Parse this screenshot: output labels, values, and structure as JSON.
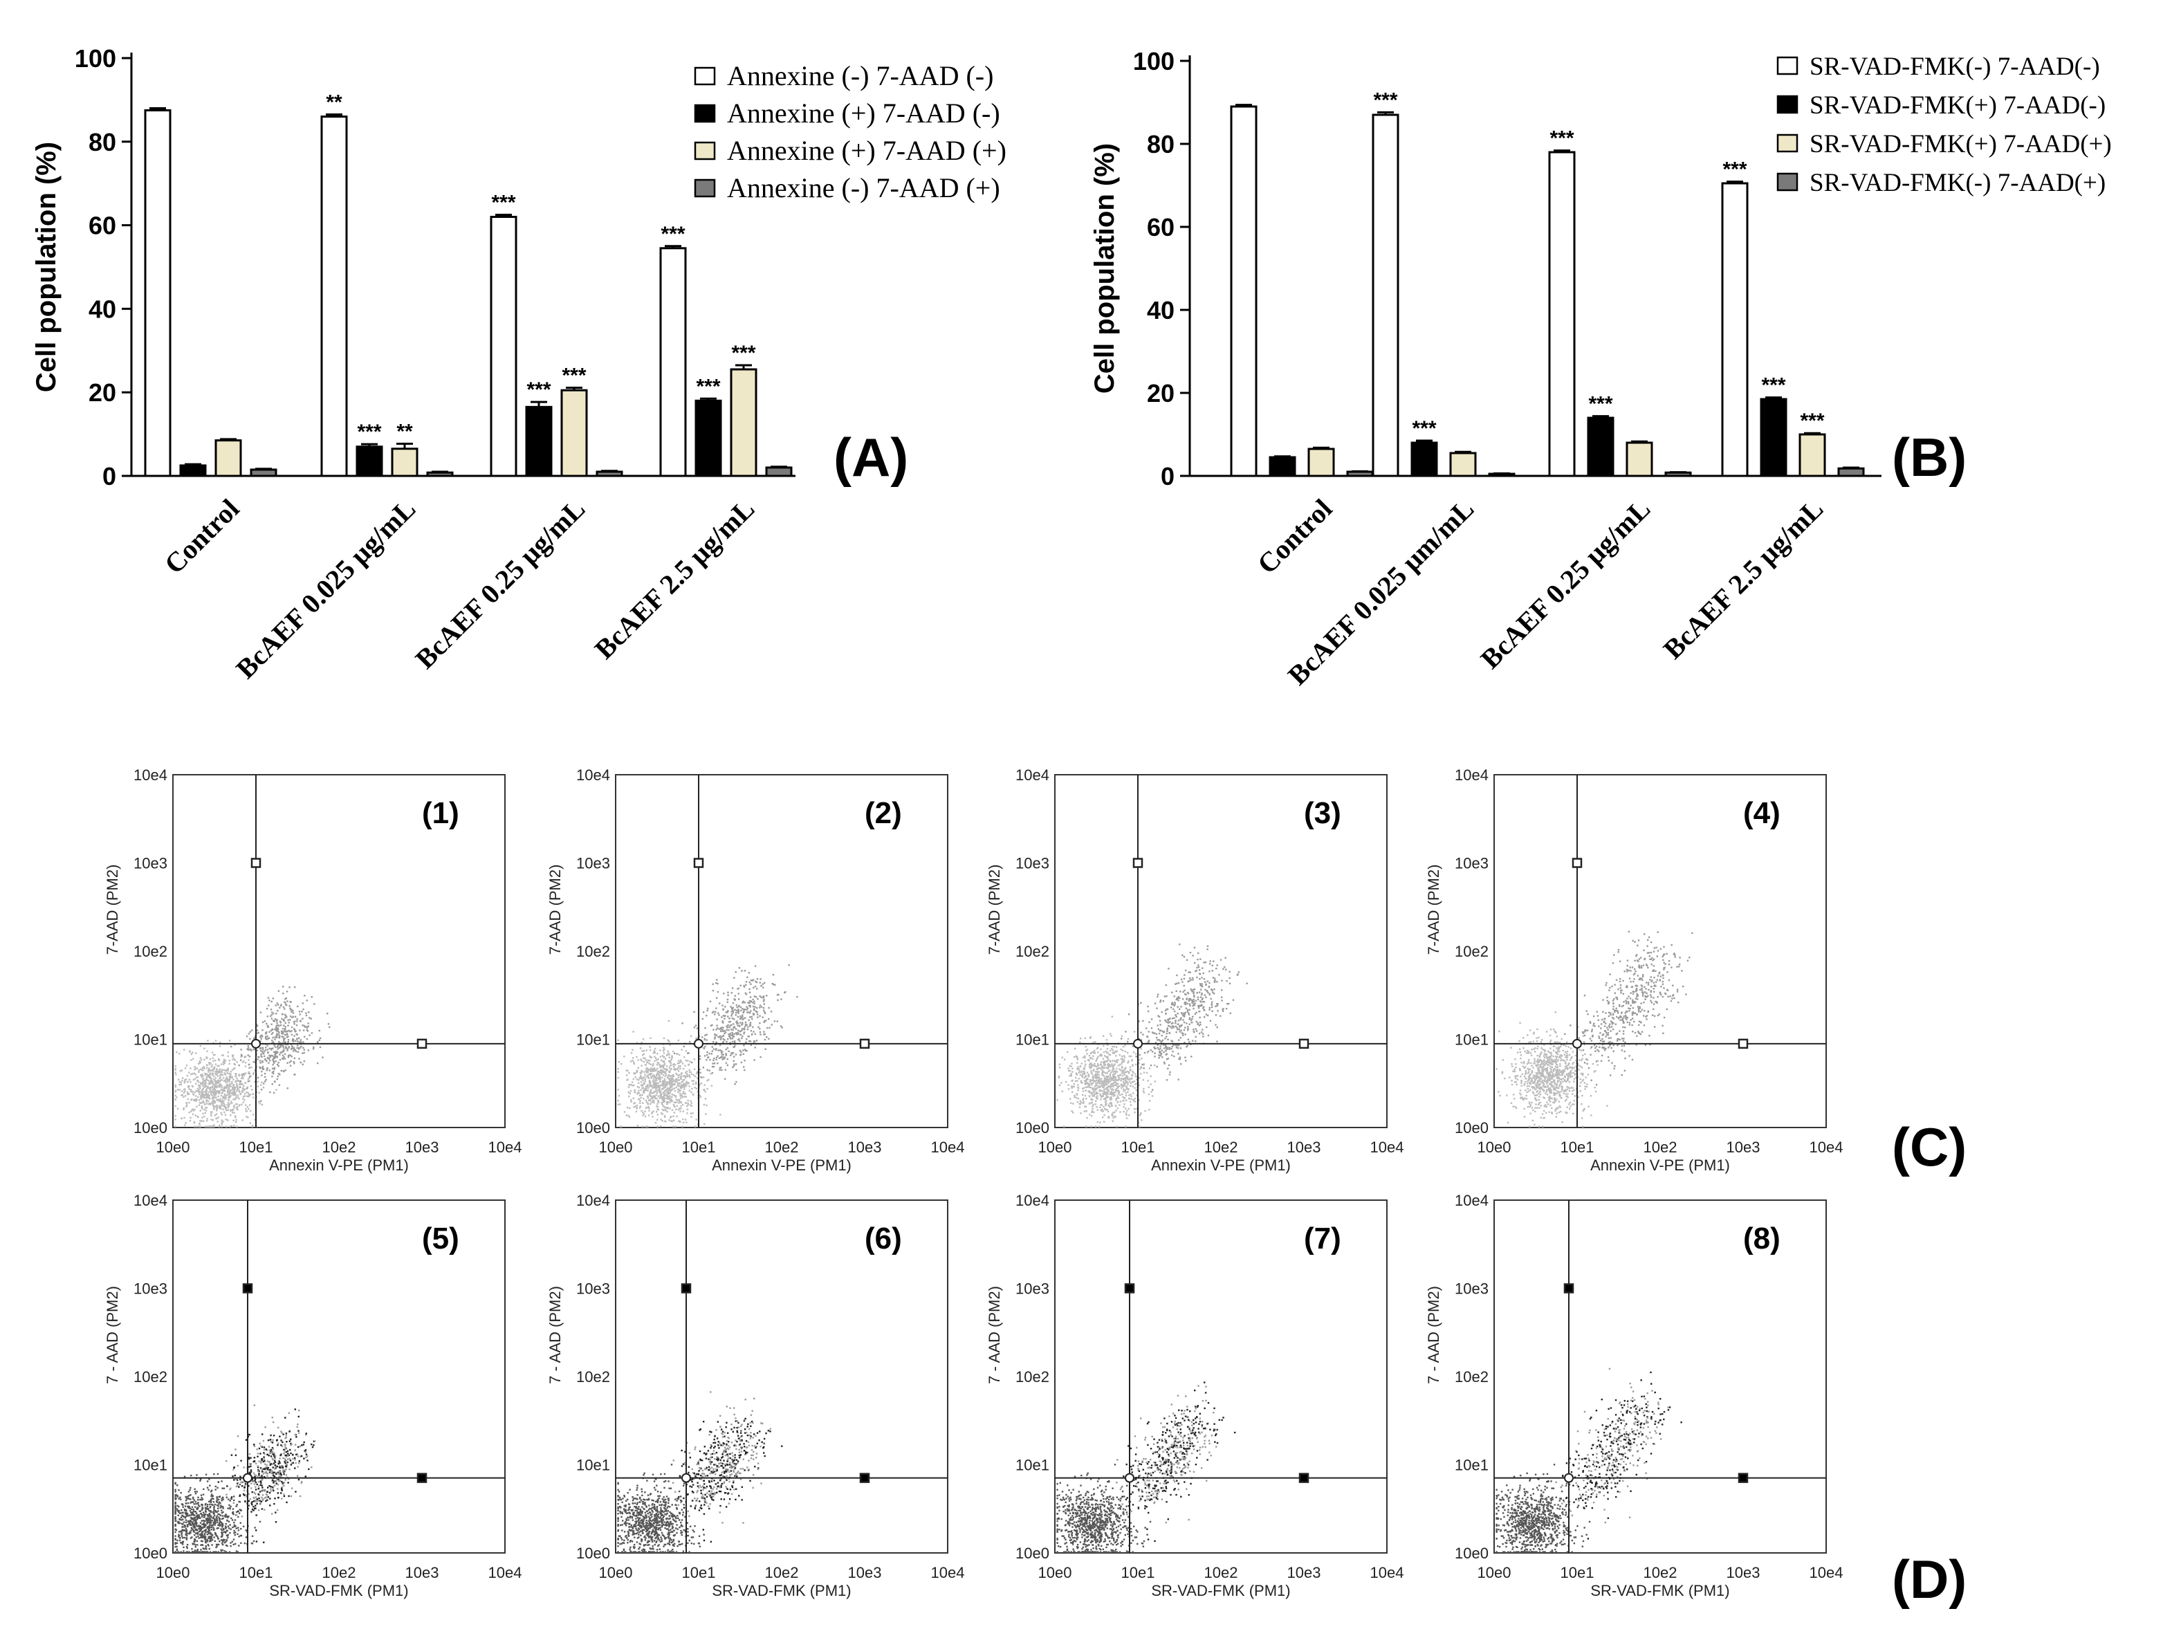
{
  "chart_data": [
    {
      "id": "A",
      "type": "bar",
      "panel_label": "(A)",
      "ylabel": "Cell population (%)",
      "ylim": [
        0,
        100
      ],
      "yticks": [
        "0",
        "20",
        "40",
        "60",
        "80",
        "100"
      ],
      "categories": [
        "Control",
        "BcAEF 0.025 μg/mL",
        "BcAEF 0.25 μg/mL",
        "BcAEF 2.5 μg/mL"
      ],
      "series": [
        {
          "name": "Annexine (-) 7-AAD (-)",
          "values": [
            87.5,
            86,
            62,
            54.5
          ],
          "errors": [
            0.5,
            0.5,
            0.5,
            0.5
          ],
          "sig": [
            "",
            "**",
            "***",
            "***"
          ]
        },
        {
          "name": "Annexine (+) 7-AAD (-)",
          "values": [
            2.5,
            7,
            16.5,
            18
          ],
          "errors": [
            0.3,
            0.6,
            1.2,
            0.5
          ],
          "sig": [
            "",
            "***",
            "***",
            "***"
          ]
        },
        {
          "name": "Annexine (+) 7-AAD (+)",
          "values": [
            8.5,
            6.5,
            20.5,
            25.5
          ],
          "errors": [
            0.3,
            1.2,
            0.6,
            1.0
          ],
          "sig": [
            "",
            "**",
            "***",
            "***"
          ]
        },
        {
          "name": "Annexine (-) 7-AAD (+)",
          "values": [
            1.5,
            0.8,
            1.0,
            2.0
          ],
          "errors": [
            0.2,
            0.2,
            0.2,
            0.2
          ],
          "sig": [
            "",
            "",
            "",
            ""
          ]
        }
      ]
    },
    {
      "id": "B",
      "type": "bar",
      "panel_label": "(B)",
      "ylabel": "Cell population (%)",
      "ylim": [
        0,
        100
      ],
      "yticks": [
        "0",
        "20",
        "40",
        "60",
        "80",
        "100"
      ],
      "categories": [
        "Control",
        "BcAEF 0.025 μm/mL",
        "BcAEF 0.25 μg/mL",
        "BcAEF 2.5 μg/mL"
      ],
      "series": [
        {
          "name": "SR-VAD-FMK(-) 7-AAD(-)",
          "values": [
            89,
            87,
            78,
            70.5
          ],
          "errors": [
            0.4,
            0.6,
            0.4,
            0.4
          ],
          "sig": [
            "",
            "***",
            "***",
            "***"
          ]
        },
        {
          "name": "SR-VAD-FMK(+) 7-AAD(-)",
          "values": [
            4.5,
            8,
            14,
            18.5
          ],
          "errors": [
            0.2,
            0.5,
            0.4,
            0.4
          ],
          "sig": [
            "",
            "***",
            "***",
            "***"
          ]
        },
        {
          "name": "SR-VAD-FMK(+) 7-AAD(+)",
          "values": [
            6.5,
            5.5,
            8,
            10
          ],
          "errors": [
            0.3,
            0.3,
            0.3,
            0.3
          ],
          "sig": [
            "",
            "",
            "",
            "***"
          ]
        },
        {
          "name": "SR-VAD-FMK(-) 7-AAD(+)",
          "values": [
            1.0,
            0.5,
            0.8,
            1.8
          ],
          "errors": [
            0.1,
            0.1,
            0.1,
            0.2
          ],
          "sig": [
            "",
            "",
            "",
            ""
          ]
        }
      ]
    },
    {
      "id": "C",
      "type": "scatter",
      "panel_label": "(C)",
      "xlabel": "Annexin V-PE (PM1)",
      "ylabel": "7-AAD (PM2)",
      "tick_labels": [
        "10e0",
        "10e1",
        "10e2",
        "10e3",
        "10e4"
      ],
      "plots": [
        {
          "label": "(1)",
          "gate": [
            1.0,
            0.95
          ],
          "cluster": [
            0.5,
            0.45
          ],
          "spread": 0.6
        },
        {
          "label": "(2)",
          "gate": [
            1.0,
            0.95
          ],
          "cluster": [
            0.55,
            0.5
          ],
          "spread": 0.9
        },
        {
          "label": "(3)",
          "gate": [
            1.0,
            0.95
          ],
          "cluster": [
            0.6,
            0.55
          ],
          "spread": 1.1
        },
        {
          "label": "(4)",
          "gate": [
            1.0,
            0.95
          ],
          "cluster": [
            0.65,
            0.6
          ],
          "spread": 1.25
        }
      ]
    },
    {
      "id": "D",
      "type": "scatter",
      "panel_label": "(D)",
      "xlabel": "SR-VAD-FMK (PM1)",
      "ylabel": "7 - AAD (PM2)",
      "tick_labels": [
        "10e0",
        "10e1",
        "10e2",
        "10e3",
        "10e4"
      ],
      "plots": [
        {
          "label": "(5)",
          "gate": [
            0.9,
            0.85
          ],
          "cluster": [
            0.35,
            0.35
          ],
          "spread": 0.7
        },
        {
          "label": "(6)",
          "gate": [
            0.85,
            0.85
          ],
          "cluster": [
            0.4,
            0.35
          ],
          "spread": 0.9
        },
        {
          "label": "(7)",
          "gate": [
            0.9,
            0.85
          ],
          "cluster": [
            0.45,
            0.35
          ],
          "spread": 1.1
        },
        {
          "label": "(8)",
          "gate": [
            0.9,
            0.85
          ],
          "cluster": [
            0.45,
            0.35
          ],
          "spread": 1.25
        }
      ]
    }
  ]
}
